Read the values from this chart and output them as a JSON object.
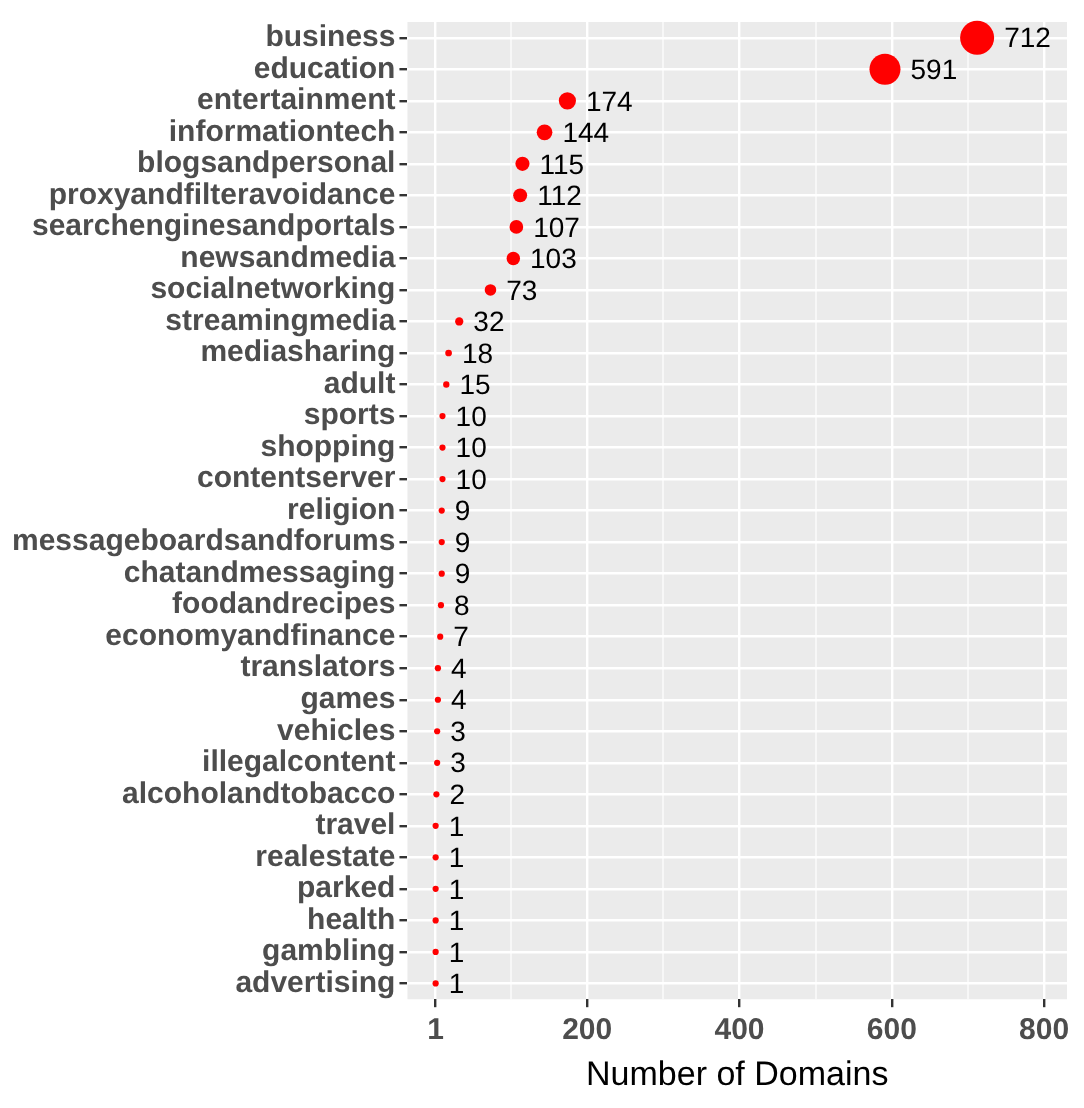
{
  "chart_data": {
    "type": "bubble",
    "orientation": "horizontal",
    "xlabel": "Number of Domains",
    "categories": [
      "business",
      "education",
      "entertainment",
      "informationtech",
      "blogsandpersonal",
      "proxyandfilteravoidance",
      "searchenginesandportals",
      "newsandmedia",
      "socialnetworking",
      "streamingmedia",
      "mediasharing",
      "adult",
      "sports",
      "shopping",
      "contentserver",
      "religion",
      "messageboardsandforums",
      "chatandmessaging",
      "foodandrecipes",
      "economyandfinance",
      "translators",
      "games",
      "vehicles",
      "illegalcontent",
      "alcoholandtobacco",
      "travel",
      "realestate",
      "parked",
      "health",
      "gambling",
      "advertising"
    ],
    "values": [
      712,
      591,
      174,
      144,
      115,
      112,
      107,
      103,
      73,
      32,
      18,
      15,
      10,
      10,
      10,
      9,
      9,
      9,
      8,
      7,
      4,
      4,
      3,
      3,
      2,
      1,
      1,
      1,
      1,
      1,
      1
    ],
    "sizes": [
      1,
      0.832,
      0.255,
      0.214,
      0.173,
      0.169,
      0.162,
      0.157,
      0.115,
      0.059,
      0.039,
      0.035,
      null,
      null,
      null,
      null,
      null,
      null,
      null,
      null,
      null,
      null,
      null,
      null,
      null,
      null,
      null,
      null,
      null,
      null,
      null
    ],
    "color": "#ff0000",
    "data_labels": true,
    "grid": true,
    "legend": false,
    "xlim": [
      -36,
      830
    ],
    "xticks": [
      1,
      {
        "value": 100.5,
        "label": null
      },
      200,
      {
        "value": 300,
        "label": null
      },
      400,
      {
        "value": 500,
        "label": null
      },
      600,
      {
        "value": 700,
        "label": null
      },
      800
    ]
  }
}
